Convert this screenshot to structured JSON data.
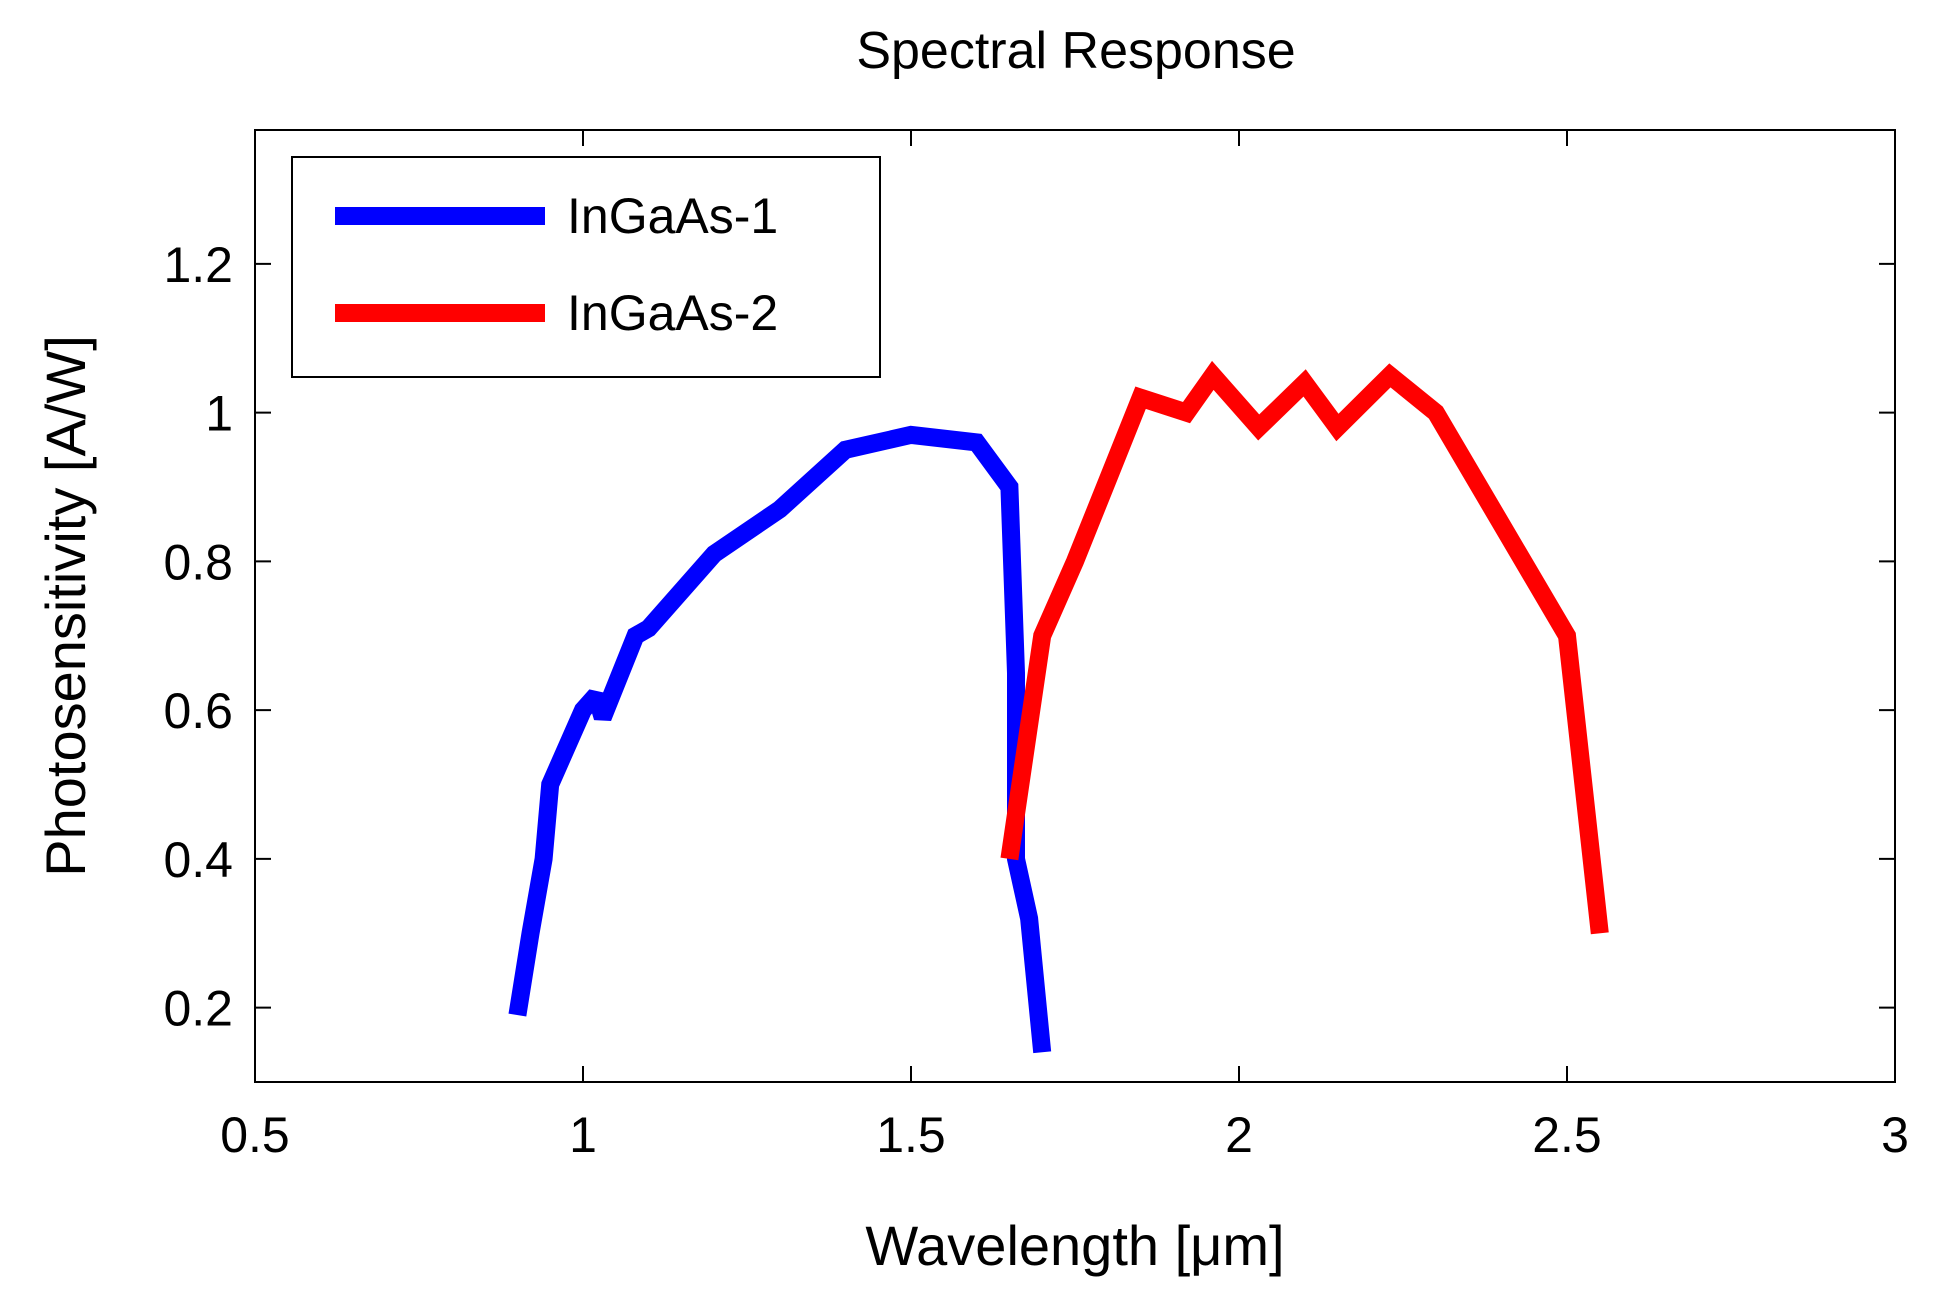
{
  "chart_data": {
    "type": "line",
    "title": "Spectral Response",
    "xlabel": "Wavelength [μm]",
    "ylabel": "Photosensitivity [A/W]",
    "xlim": [
      0.5,
      3
    ],
    "ylim": [
      0.1,
      1.38
    ],
    "xticks": [
      0.5,
      1,
      1.5,
      2,
      2.5,
      3
    ],
    "xtick_labels": [
      "0.5",
      "1",
      "1.5",
      "2",
      "2.5",
      "3"
    ],
    "yticks": [
      0.2,
      0.4,
      0.6,
      0.8,
      1,
      1.2
    ],
    "ytick_labels": [
      "0.2",
      "0.4",
      "0.6",
      "0.8",
      "1",
      "1.2"
    ],
    "grid": false,
    "legend_position": "top-left",
    "series": [
      {
        "name": "InGaAs-1",
        "color": "#0000ff",
        "points": [
          [
            0.9,
            0.19
          ],
          [
            0.92,
            0.3
          ],
          [
            0.94,
            0.4
          ],
          [
            0.95,
            0.5
          ],
          [
            1.0,
            0.6
          ],
          [
            1.02,
            0.62
          ],
          [
            1.03,
            0.59
          ],
          [
            1.08,
            0.7
          ],
          [
            1.1,
            0.71
          ],
          [
            1.2,
            0.81
          ],
          [
            1.3,
            0.87
          ],
          [
            1.4,
            0.95
          ],
          [
            1.5,
            0.97
          ],
          [
            1.6,
            0.96
          ],
          [
            1.65,
            0.9
          ],
          [
            1.66,
            0.65
          ],
          [
            1.66,
            0.4
          ],
          [
            1.68,
            0.32
          ],
          [
            1.7,
            0.14
          ]
        ]
      },
      {
        "name": "InGaAs-2",
        "color": "#ff0000",
        "points": [
          [
            1.65,
            0.4
          ],
          [
            1.7,
            0.7
          ],
          [
            1.75,
            0.8
          ],
          [
            1.8,
            0.91
          ],
          [
            1.85,
            1.02
          ],
          [
            1.92,
            1.0
          ],
          [
            1.96,
            1.05
          ],
          [
            2.03,
            0.98
          ],
          [
            2.1,
            1.04
          ],
          [
            2.15,
            0.98
          ],
          [
            2.23,
            1.05
          ],
          [
            2.3,
            1.0
          ],
          [
            2.4,
            0.85
          ],
          [
            2.5,
            0.7
          ],
          [
            2.55,
            0.3
          ]
        ]
      }
    ]
  }
}
